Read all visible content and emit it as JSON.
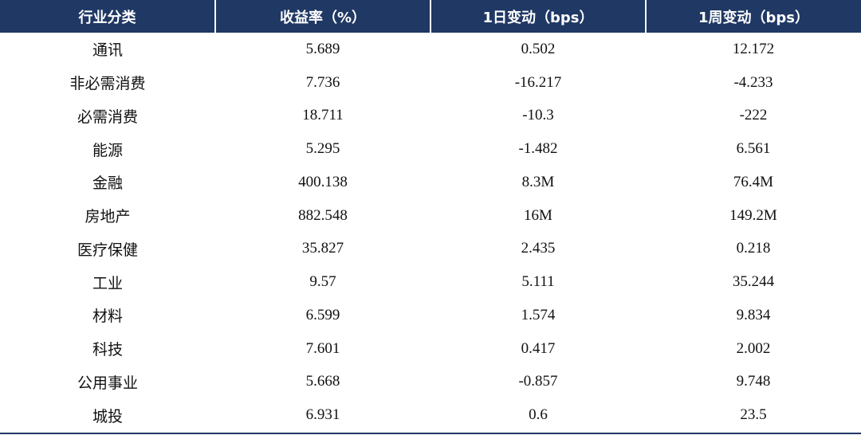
{
  "table": {
    "headers": [
      "行业分类",
      "收益率（%）",
      "1日变动（bps）",
      "1周变动（bps）"
    ],
    "rows": [
      [
        "通讯",
        "5.689",
        "0.502",
        "12.172"
      ],
      [
        "非必需消费",
        "7.736",
        "-16.217",
        "-4.233"
      ],
      [
        "必需消费",
        "18.711",
        "-10.3",
        "-222"
      ],
      [
        "能源",
        "5.295",
        "-1.482",
        "6.561"
      ],
      [
        "金融",
        "400.138",
        "8.3M",
        "76.4M"
      ],
      [
        "房地产",
        "882.548",
        "16M",
        "149.2M"
      ],
      [
        "医疗保健",
        "35.827",
        "2.435",
        "0.218"
      ],
      [
        "工业",
        "9.57",
        "5.111",
        "35.244"
      ],
      [
        "材料",
        "6.599",
        "1.574",
        "9.834"
      ],
      [
        "科技",
        "7.601",
        "0.417",
        "2.002"
      ],
      [
        "公用事业",
        "5.668",
        "-0.857",
        "9.748"
      ],
      [
        "城投",
        "6.931",
        "0.6",
        "23.5"
      ]
    ]
  },
  "colors": {
    "header_bg": "#1f3864",
    "header_text": "#ffffff",
    "rule": "#1f3864"
  }
}
